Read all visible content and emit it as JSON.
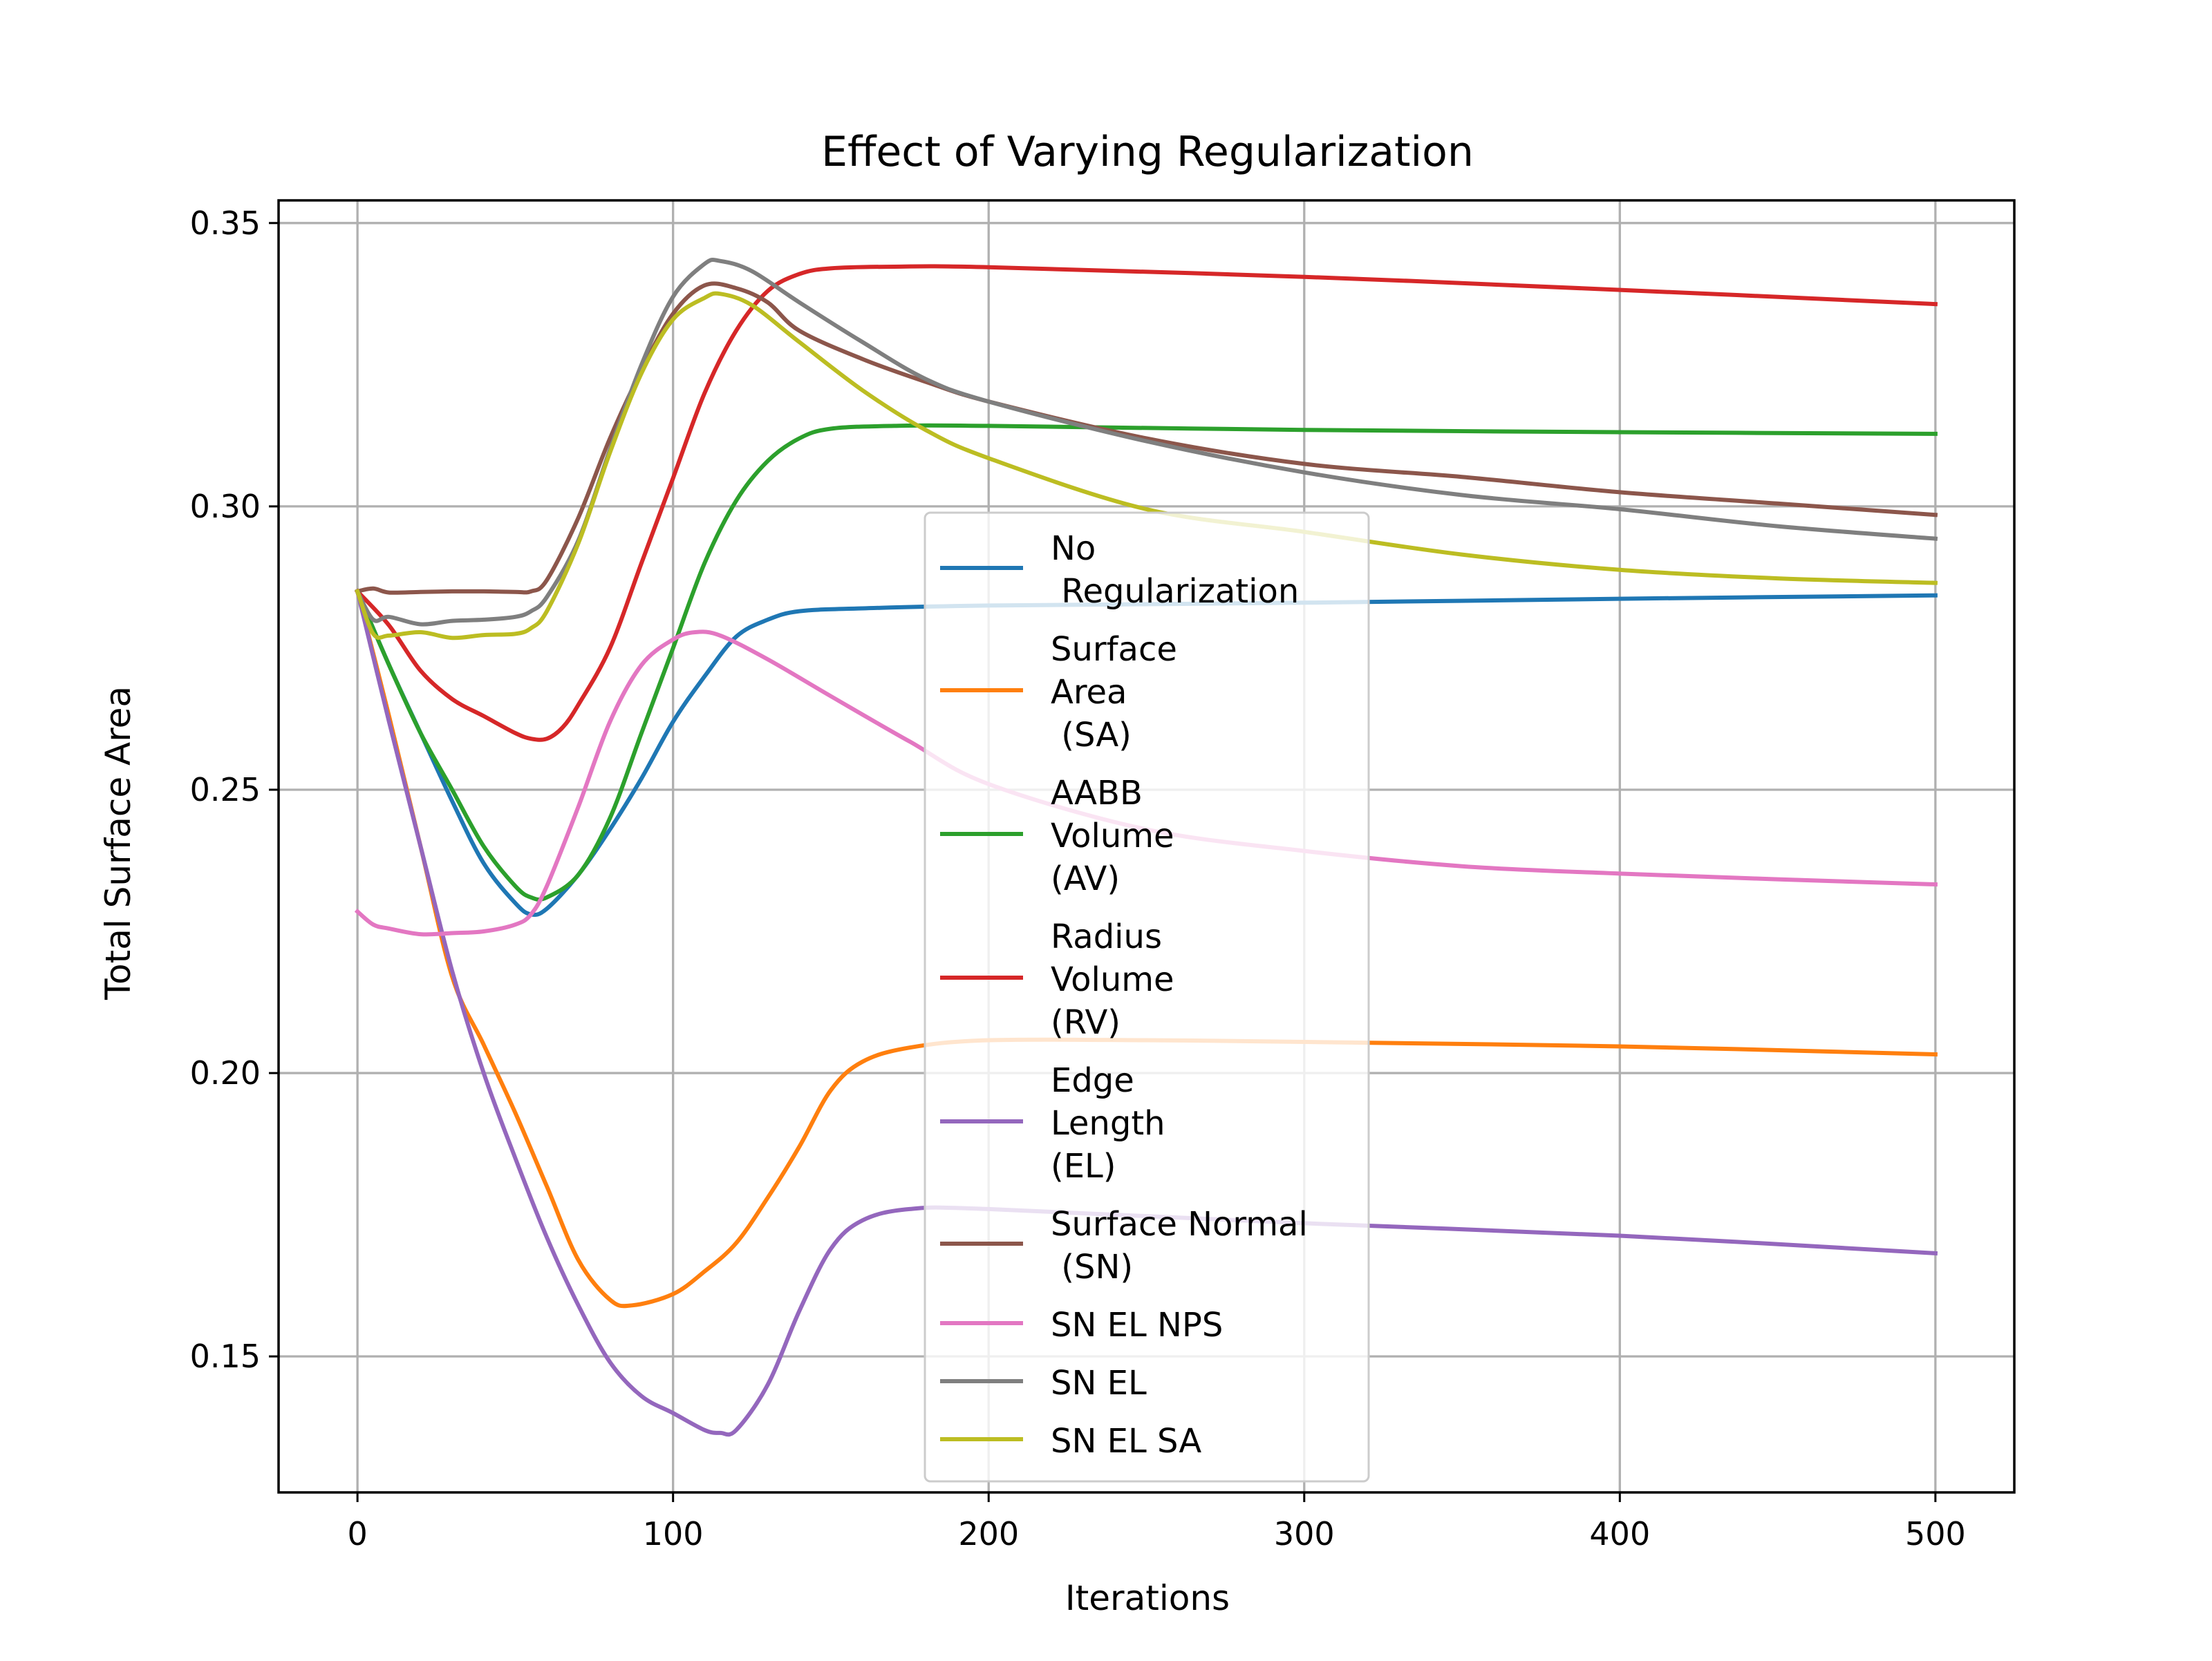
{
  "chart_data": {
    "type": "line",
    "title": "Effect of Varying Regularization",
    "xlabel": "Iterations",
    "ylabel": "Total Surface Area",
    "xlim": [
      -25,
      525
    ],
    "ylim": [
      0.126,
      0.354
    ],
    "xticks": [
      0,
      100,
      200,
      300,
      400,
      500
    ],
    "xtick_labels": [
      "0",
      "100",
      "200",
      "300",
      "400",
      "500"
    ],
    "yticks": [
      0.15,
      0.2,
      0.25,
      0.3,
      0.35
    ],
    "ytick_labels": [
      "0.15",
      "0.20",
      "0.25",
      "0.30",
      "0.35"
    ],
    "grid": true,
    "legend_position": "center",
    "series": [
      {
        "name": "No\n Regularization",
        "color": "#1f77b4",
        "points": [
          [
            0,
            0.285
          ],
          [
            10,
            0.272
          ],
          [
            20,
            0.26
          ],
          [
            30,
            0.248
          ],
          [
            40,
            0.237
          ],
          [
            50,
            0.23
          ],
          [
            55,
            0.228
          ],
          [
            60,
            0.229
          ],
          [
            70,
            0.235
          ],
          [
            80,
            0.243
          ],
          [
            90,
            0.252
          ],
          [
            100,
            0.262
          ],
          [
            110,
            0.27
          ],
          [
            120,
            0.277
          ],
          [
            130,
            0.28
          ],
          [
            140,
            0.2815
          ],
          [
            160,
            0.282
          ],
          [
            200,
            0.2825
          ],
          [
            300,
            0.283
          ],
          [
            400,
            0.2837
          ],
          [
            500,
            0.2843
          ]
        ]
      },
      {
        "name": "Surface\nArea\n (SA)",
        "color": "#ff7f0e",
        "points": [
          [
            0,
            0.285
          ],
          [
            10,
            0.263
          ],
          [
            20,
            0.24
          ],
          [
            30,
            0.217
          ],
          [
            40,
            0.205
          ],
          [
            50,
            0.193
          ],
          [
            60,
            0.18
          ],
          [
            70,
            0.167
          ],
          [
            80,
            0.16
          ],
          [
            87,
            0.159
          ],
          [
            100,
            0.161
          ],
          [
            110,
            0.165
          ],
          [
            120,
            0.17
          ],
          [
            130,
            0.178
          ],
          [
            140,
            0.187
          ],
          [
            150,
            0.197
          ],
          [
            160,
            0.202
          ],
          [
            175,
            0.2045
          ],
          [
            200,
            0.2058
          ],
          [
            250,
            0.2058
          ],
          [
            300,
            0.2055
          ],
          [
            400,
            0.2047
          ],
          [
            500,
            0.2033
          ]
        ]
      },
      {
        "name": "AABB\nVolume\n(AV)",
        "color": "#2ca02c",
        "points": [
          [
            0,
            0.285
          ],
          [
            10,
            0.272
          ],
          [
            20,
            0.26
          ],
          [
            30,
            0.25
          ],
          [
            40,
            0.24
          ],
          [
            50,
            0.233
          ],
          [
            55,
            0.231
          ],
          [
            60,
            0.231
          ],
          [
            70,
            0.235
          ],
          [
            80,
            0.245
          ],
          [
            90,
            0.26
          ],
          [
            100,
            0.275
          ],
          [
            110,
            0.29
          ],
          [
            120,
            0.301
          ],
          [
            130,
            0.308
          ],
          [
            140,
            0.312
          ],
          [
            150,
            0.3137
          ],
          [
            170,
            0.3142
          ],
          [
            200,
            0.3142
          ],
          [
            300,
            0.3135
          ],
          [
            400,
            0.3131
          ],
          [
            500,
            0.3128
          ]
        ]
      },
      {
        "name": "Radius\nVolume\n(RV)",
        "color": "#d62728",
        "points": [
          [
            0,
            0.285
          ],
          [
            10,
            0.279
          ],
          [
            20,
            0.271
          ],
          [
            30,
            0.266
          ],
          [
            40,
            0.263
          ],
          [
            50,
            0.26
          ],
          [
            55,
            0.259
          ],
          [
            60,
            0.259
          ],
          [
            65,
            0.261
          ],
          [
            70,
            0.265
          ],
          [
            80,
            0.275
          ],
          [
            90,
            0.29
          ],
          [
            100,
            0.305
          ],
          [
            110,
            0.32
          ],
          [
            120,
            0.331
          ],
          [
            130,
            0.338
          ],
          [
            140,
            0.341
          ],
          [
            150,
            0.342
          ],
          [
            170,
            0.3423
          ],
          [
            200,
            0.3422
          ],
          [
            300,
            0.3405
          ],
          [
            400,
            0.3382
          ],
          [
            500,
            0.3357
          ]
        ]
      },
      {
        "name": "Edge\nLength\n(EL)",
        "color": "#9467bd",
        "points": [
          [
            0,
            0.285
          ],
          [
            10,
            0.262
          ],
          [
            20,
            0.24
          ],
          [
            30,
            0.218
          ],
          [
            40,
            0.2
          ],
          [
            50,
            0.185
          ],
          [
            60,
            0.171
          ],
          [
            70,
            0.159
          ],
          [
            80,
            0.149
          ],
          [
            90,
            0.143
          ],
          [
            100,
            0.14
          ],
          [
            110,
            0.137
          ],
          [
            115,
            0.1365
          ],
          [
            120,
            0.137
          ],
          [
            130,
            0.145
          ],
          [
            140,
            0.158
          ],
          [
            150,
            0.169
          ],
          [
            160,
            0.174
          ],
          [
            175,
            0.176
          ],
          [
            200,
            0.176
          ],
          [
            300,
            0.1735
          ],
          [
            400,
            0.1713
          ],
          [
            500,
            0.1682
          ]
        ]
      },
      {
        "name": "Surface Normal\n (SN)",
        "color": "#8c564b",
        "points": [
          [
            0,
            0.285
          ],
          [
            5,
            0.2855
          ],
          [
            10,
            0.2848
          ],
          [
            20,
            0.2849
          ],
          [
            30,
            0.285
          ],
          [
            40,
            0.285
          ],
          [
            50,
            0.2849
          ],
          [
            55,
            0.285
          ],
          [
            60,
            0.287
          ],
          [
            70,
            0.298
          ],
          [
            80,
            0.312
          ],
          [
            90,
            0.324
          ],
          [
            100,
            0.334
          ],
          [
            110,
            0.339
          ],
          [
            120,
            0.3385
          ],
          [
            130,
            0.336
          ],
          [
            140,
            0.331
          ],
          [
            160,
            0.326
          ],
          [
            180,
            0.322
          ],
          [
            200,
            0.3185
          ],
          [
            250,
            0.312
          ],
          [
            300,
            0.3075
          ],
          [
            350,
            0.3052
          ],
          [
            400,
            0.3025
          ],
          [
            450,
            0.3005
          ],
          [
            500,
            0.2985
          ]
        ]
      },
      {
        "name": "SN EL NPS",
        "color": "#e377c2",
        "points": [
          [
            0,
            0.2285
          ],
          [
            5,
            0.2262
          ],
          [
            10,
            0.2255
          ],
          [
            20,
            0.2245
          ],
          [
            30,
            0.2247
          ],
          [
            40,
            0.225
          ],
          [
            50,
            0.2262
          ],
          [
            55,
            0.228
          ],
          [
            60,
            0.233
          ],
          [
            70,
            0.247
          ],
          [
            80,
            0.262
          ],
          [
            90,
            0.272
          ],
          [
            100,
            0.2765
          ],
          [
            107,
            0.2778
          ],
          [
            115,
            0.2772
          ],
          [
            130,
            0.273
          ],
          [
            150,
            0.2665
          ],
          [
            175,
            0.2585
          ],
          [
            200,
            0.251
          ],
          [
            250,
            0.243
          ],
          [
            300,
            0.2392
          ],
          [
            350,
            0.2365
          ],
          [
            400,
            0.2352
          ],
          [
            450,
            0.2342
          ],
          [
            500,
            0.2333
          ]
        ]
      },
      {
        "name": "SN EL",
        "color": "#7f7f7f",
        "points": [
          [
            0,
            0.285
          ],
          [
            5,
            0.28
          ],
          [
            10,
            0.2805
          ],
          [
            20,
            0.2792
          ],
          [
            30,
            0.2798
          ],
          [
            40,
            0.28
          ],
          [
            50,
            0.2805
          ],
          [
            55,
            0.2815
          ],
          [
            60,
            0.284
          ],
          [
            70,
            0.294
          ],
          [
            80,
            0.31
          ],
          [
            90,
            0.325
          ],
          [
            100,
            0.337
          ],
          [
            110,
            0.3428
          ],
          [
            115,
            0.3433
          ],
          [
            125,
            0.3415
          ],
          [
            140,
            0.336
          ],
          [
            160,
            0.329
          ],
          [
            180,
            0.3225
          ],
          [
            200,
            0.3185
          ],
          [
            250,
            0.3115
          ],
          [
            300,
            0.306
          ],
          [
            350,
            0.302
          ],
          [
            400,
            0.2995
          ],
          [
            450,
            0.2965
          ],
          [
            500,
            0.2943
          ]
        ]
      },
      {
        "name": "SN EL SA",
        "color": "#bcbd22",
        "points": [
          [
            0,
            0.285
          ],
          [
            5,
            0.2775
          ],
          [
            10,
            0.2772
          ],
          [
            20,
            0.2778
          ],
          [
            30,
            0.2768
          ],
          [
            40,
            0.2773
          ],
          [
            50,
            0.2775
          ],
          [
            55,
            0.2785
          ],
          [
            60,
            0.2815
          ],
          [
            70,
            0.2935
          ],
          [
            80,
            0.3095
          ],
          [
            90,
            0.3235
          ],
          [
            100,
            0.333
          ],
          [
            110,
            0.3368
          ],
          [
            115,
            0.3375
          ],
          [
            125,
            0.3355
          ],
          [
            140,
            0.329
          ],
          [
            160,
            0.3205
          ],
          [
            180,
            0.3135
          ],
          [
            200,
            0.3085
          ],
          [
            250,
            0.2995
          ],
          [
            300,
            0.2955
          ],
          [
            350,
            0.2915
          ],
          [
            400,
            0.2888
          ],
          [
            450,
            0.2873
          ],
          [
            500,
            0.2865
          ]
        ]
      }
    ]
  }
}
